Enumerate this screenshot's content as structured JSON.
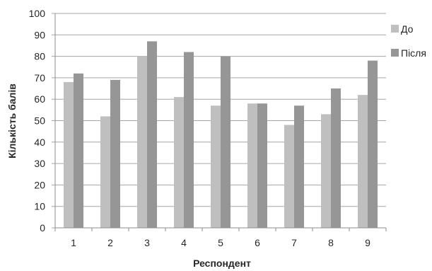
{
  "chart_data": {
    "type": "bar",
    "xlabel": "Респондент",
    "ylabel": "Кількість балів",
    "categories": [
      "1",
      "2",
      "3",
      "4",
      "5",
      "6",
      "7",
      "8",
      "9"
    ],
    "series": [
      {
        "name": "До",
        "color": "#bfbfbf",
        "values": [
          68,
          52,
          80,
          61,
          57,
          58,
          48,
          53,
          62
        ]
      },
      {
        "name": "Після",
        "color": "#969696",
        "values": [
          72,
          69,
          87,
          82,
          80,
          58,
          57,
          65,
          78
        ]
      }
    ],
    "ylim": [
      0,
      100
    ],
    "yticks": [
      "0",
      "10",
      "20",
      "30",
      "40",
      "50",
      "60",
      "70",
      "80",
      "90",
      "100"
    ],
    "grid": true,
    "legend_position": "right"
  }
}
